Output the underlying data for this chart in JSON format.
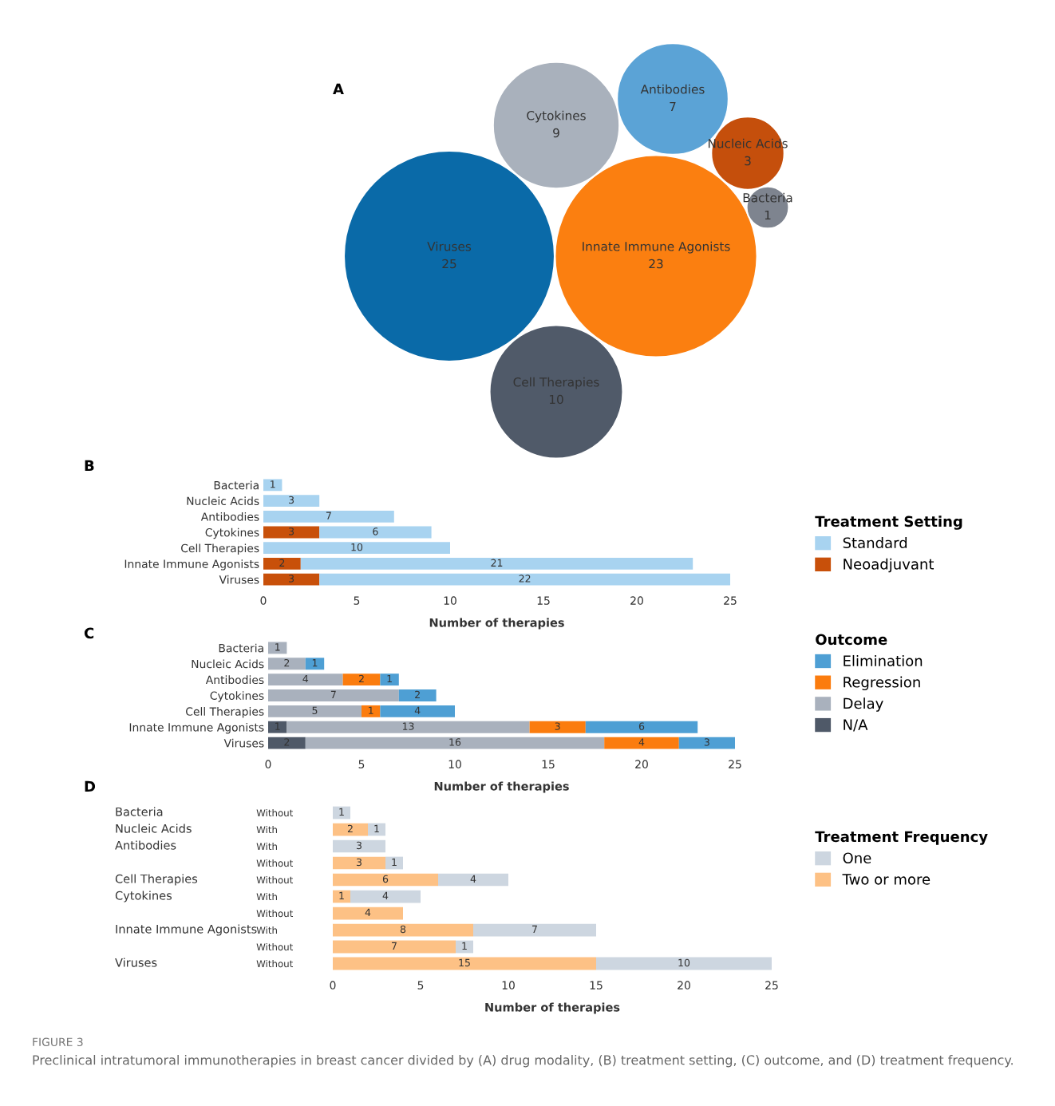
{
  "chart_data": [
    {
      "type": "other",
      "title": "A",
      "categories": [
        "Viruses",
        "Innate Immune Agonists",
        "Cell Therapies",
        "Cytokines",
        "Antibodies",
        "Nucleic Acids",
        "Bacteria"
      ],
      "values": [
        25,
        23,
        10,
        9,
        7,
        3,
        1
      ],
      "colors": [
        "#0a6aa8",
        "#fb7f10",
        "#505a69",
        "#a9b1bc",
        "#5ba3d6",
        "#c54f0c",
        "#7e848f"
      ],
      "data_labels": true
    },
    {
      "type": "bar",
      "title": "B",
      "orientation": "horizontal",
      "stacked": true,
      "categories": [
        "Bacteria",
        "Nucleic Acids",
        "Antibodies",
        "Cytokines",
        "Cell Therapies",
        "Innate Immune Agonists",
        "Viruses"
      ],
      "series": [
        {
          "name": "Neoadjuvant",
          "color": "#c8500a",
          "values": [
            null,
            null,
            null,
            3,
            null,
            2,
            3
          ]
        },
        {
          "name": "Standard",
          "color": "#a8d3f0",
          "values": [
            1,
            3,
            7,
            6,
            10,
            21,
            22
          ]
        }
      ],
      "xlim": [
        0,
        25
      ],
      "xticks": [
        0,
        5,
        10,
        15,
        20,
        25
      ],
      "xlabel": "Number of therapies",
      "legend": "right",
      "legend_title": "Treatment Setting",
      "data_labels": true,
      "grid": false
    },
    {
      "type": "bar",
      "title": "C",
      "orientation": "horizontal",
      "stacked": true,
      "categories": [
        "Bacteria",
        "Nucleic Acids",
        "Antibodies",
        "Cytokines",
        "Cell Therapies",
        "Innate Immune Agonists",
        "Viruses"
      ],
      "series": [
        {
          "name": "N/A",
          "color": "#4f5968",
          "values": [
            null,
            null,
            null,
            null,
            null,
            1,
            2
          ]
        },
        {
          "name": "Delay",
          "color": "#a9b1bd",
          "values": [
            1,
            2,
            4,
            7,
            5,
            13,
            16
          ]
        },
        {
          "name": "Regression",
          "color": "#fb7c0e",
          "values": [
            null,
            null,
            2,
            null,
            1,
            3,
            4
          ]
        },
        {
          "name": "Elimination",
          "color": "#4e9fd4",
          "values": [
            null,
            1,
            1,
            2,
            4,
            6,
            3
          ]
        }
      ],
      "xlim": [
        0,
        25
      ],
      "xticks": [
        0,
        5,
        10,
        15,
        20,
        25
      ],
      "xlabel": "Number of therapies",
      "legend": "right",
      "legend_title": "Outcome",
      "data_labels": true,
      "grid": false
    },
    {
      "type": "bar",
      "title": "D",
      "orientation": "horizontal",
      "stacked": true,
      "categories": [
        "Without",
        "With",
        "With",
        "Without",
        "Without",
        "With",
        "Without",
        "With",
        "Without",
        "Without"
      ],
      "y2_categories": [
        "Bacteria",
        "Nucleic Acids",
        "Antibodies",
        null,
        "Cell Therapies",
        "Cytokines",
        null,
        "Innate Immune Agonists",
        null,
        "Viruses"
      ],
      "series": [
        {
          "name": "Two or more",
          "color": "#fdc185",
          "values": [
            null,
            2,
            null,
            3,
            6,
            1,
            4,
            8,
            7,
            15
          ]
        },
        {
          "name": "One",
          "color": "#cdd6e0",
          "values": [
            1,
            1,
            3,
            1,
            4,
            4,
            null,
            7,
            1,
            10
          ]
        }
      ],
      "xlim": [
        0,
        25
      ],
      "xticks": [
        0,
        5,
        10,
        15,
        20,
        25
      ],
      "xlabel": "Number of therapies",
      "legend": "right",
      "legend_title": "Treatment Frequency",
      "data_labels": true,
      "grid": false,
      "annotations": [
        "FIGURE 3",
        "Preclinical intratumoral immunotherapies in breast cancer divided by (A) drug modality, (B) treatment setting, (C) outcome, and (D) treatment frequency."
      ]
    }
  ]
}
